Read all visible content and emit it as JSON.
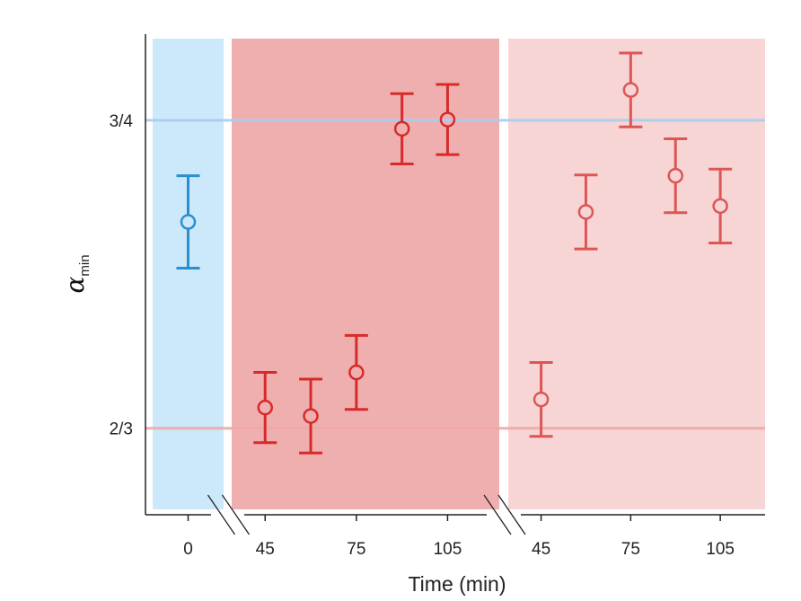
{
  "chart_data": {
    "type": "scatter",
    "xlabel": "Time (min)",
    "ylabel": {
      "symbol": "α",
      "subscript": "min"
    },
    "ylim": [
      0.6433,
      0.7733
    ],
    "y_ticks": [
      {
        "value": 0.6667,
        "label": "2/3"
      },
      {
        "value": 0.75,
        "label": "3/4"
      }
    ],
    "reference_lines": [
      {
        "value": 0.75,
        "color": "#a9cdef"
      },
      {
        "value": 0.6667,
        "color": "#f0a7a7"
      }
    ],
    "segments": [
      {
        "background": "#cce8fb",
        "x_ticks": [
          {
            "value": 0,
            "label": "0"
          }
        ],
        "series": [
          {
            "color": "#2b8fcf",
            "points": [
              {
                "x": 0,
                "y": 0.7225,
                "err": 0.0125
              }
            ]
          }
        ]
      },
      {
        "background": "#f0afaf",
        "x_ticks": [
          {
            "value": 45,
            "label": "45"
          },
          {
            "value": 75,
            "label": "75"
          },
          {
            "value": 105,
            "label": "105"
          }
        ],
        "series": [
          {
            "color": "#d62b2b",
            "points": [
              {
                "x": 45,
                "y": 0.6723,
                "err": 0.0095
              },
              {
                "x": 60,
                "y": 0.67,
                "err": 0.01
              },
              {
                "x": 75,
                "y": 0.6818,
                "err": 0.01
              },
              {
                "x": 90,
                "y": 0.7477,
                "err": 0.0095
              },
              {
                "x": 105,
                "y": 0.7502,
                "err": 0.0095
              }
            ]
          }
        ]
      },
      {
        "background": "#f7d5d5",
        "x_ticks": [
          {
            "value": 45,
            "label": "45"
          },
          {
            "value": 75,
            "label": "75"
          },
          {
            "value": 105,
            "label": "105"
          }
        ],
        "series": [
          {
            "color": "#dd5656",
            "points": [
              {
                "x": 45,
                "y": 0.6745,
                "err": 0.01
              },
              {
                "x": 60,
                "y": 0.7252,
                "err": 0.01
              },
              {
                "x": 75,
                "y": 0.7582,
                "err": 0.01
              },
              {
                "x": 90,
                "y": 0.735,
                "err": 0.01
              },
              {
                "x": 105,
                "y": 0.7268,
                "err": 0.01
              }
            ]
          }
        ]
      }
    ]
  }
}
